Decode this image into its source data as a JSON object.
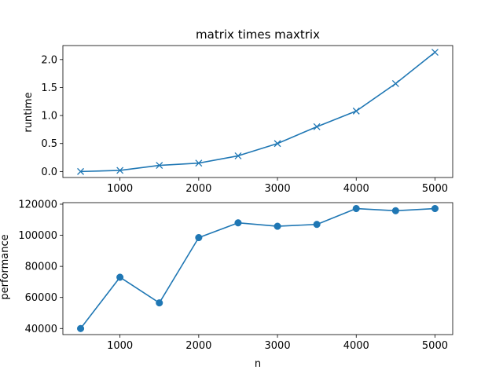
{
  "chart_data": [
    {
      "type": "line",
      "title": "matrix times maxtrix",
      "xlabel": "",
      "ylabel": "runtime",
      "marker": "x",
      "color": "#1f77b4",
      "xlim": [
        275,
        5225
      ],
      "ylim": [
        -0.107,
        2.25
      ],
      "xticks": [
        1000,
        2000,
        3000,
        4000,
        5000
      ],
      "yticks": [
        0.0,
        0.5,
        1.0,
        1.5,
        2.0
      ],
      "ytick_labels": [
        "0.0",
        "0.5",
        "1.0",
        "1.5",
        "2.0"
      ],
      "grid": false,
      "x": [
        500,
        1000,
        1500,
        2000,
        2500,
        3000,
        3500,
        4000,
        4500,
        5000
      ],
      "y": [
        0.0,
        0.02,
        0.11,
        0.15,
        0.28,
        0.5,
        0.8,
        1.08,
        1.57,
        2.13
      ]
    },
    {
      "type": "line",
      "title": "",
      "xlabel": "n",
      "ylabel": "performance",
      "marker": "o",
      "color": "#1f77b4",
      "xlim": [
        275,
        5225
      ],
      "ylim": [
        36100,
        121000
      ],
      "xticks": [
        1000,
        2000,
        3000,
        4000,
        5000
      ],
      "yticks": [
        40000,
        60000,
        80000,
        100000,
        120000
      ],
      "ytick_labels": [
        "40000",
        "60000",
        "80000",
        "100000",
        "120000"
      ],
      "grid": false,
      "x": [
        500,
        1000,
        1500,
        2000,
        2500,
        3000,
        3500,
        4000,
        4500,
        5000
      ],
      "y": [
        40000,
        73000,
        56500,
        98500,
        108000,
        105800,
        107000,
        117200,
        115800,
        117200
      ]
    }
  ]
}
